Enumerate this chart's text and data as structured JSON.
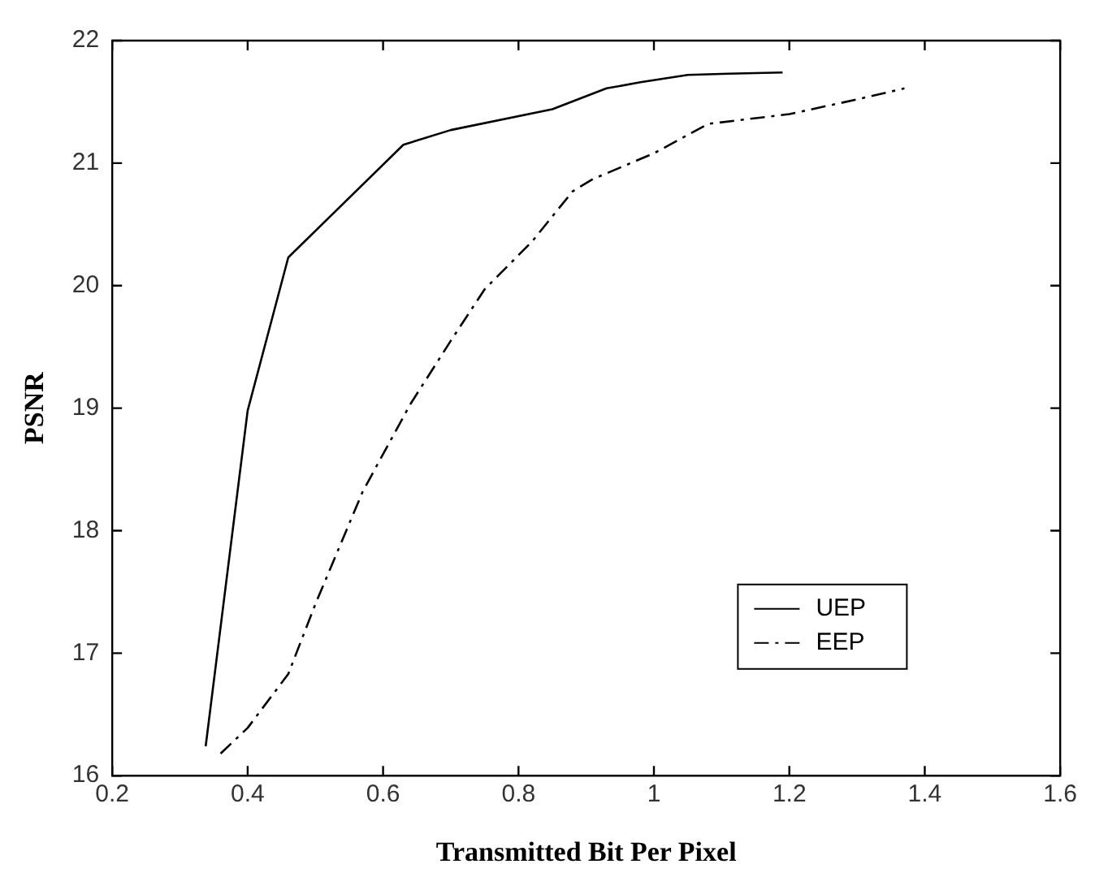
{
  "chart_data": {
    "type": "line",
    "xlabel": "Transmitted Bit Per Pixel",
    "ylabel": "PSNR",
    "xlim": [
      0.2,
      1.6
    ],
    "xticks": [
      0.2,
      0.4,
      0.6,
      0.8,
      1,
      1.2,
      1.4,
      1.6
    ],
    "ylim": [
      16,
      22
    ],
    "yticks": [
      16,
      17,
      18,
      19,
      20,
      21,
      22
    ],
    "grid": false,
    "legend": "bottom right",
    "marker": "none",
    "series": [
      {
        "name": "UEP",
        "color": "#000000",
        "line_style": "solid",
        "x": [
          0.338,
          0.4,
          0.46,
          0.63,
          0.7,
          0.85,
          0.93,
          0.98,
          1.05,
          1.11,
          1.19
        ],
        "values": [
          16.24,
          18.98,
          20.23,
          21.15,
          21.27,
          21.44,
          21.61,
          21.66,
          21.72,
          21.73,
          21.74
        ]
      },
      {
        "name": "EEP",
        "color": "#000000",
        "line_style": "dashed",
        "x": [
          0.36,
          0.4,
          0.46,
          0.5,
          0.57,
          0.64,
          0.7,
          0.75,
          0.82,
          0.88,
          0.91,
          1.0,
          1.08,
          1.2,
          1.3,
          1.37
        ],
        "values": [
          16.18,
          16.39,
          16.83,
          17.4,
          18.32,
          19.03,
          19.55,
          19.97,
          20.36,
          20.77,
          20.87,
          21.08,
          21.32,
          21.4,
          21.52,
          21.61
        ]
      }
    ]
  }
}
